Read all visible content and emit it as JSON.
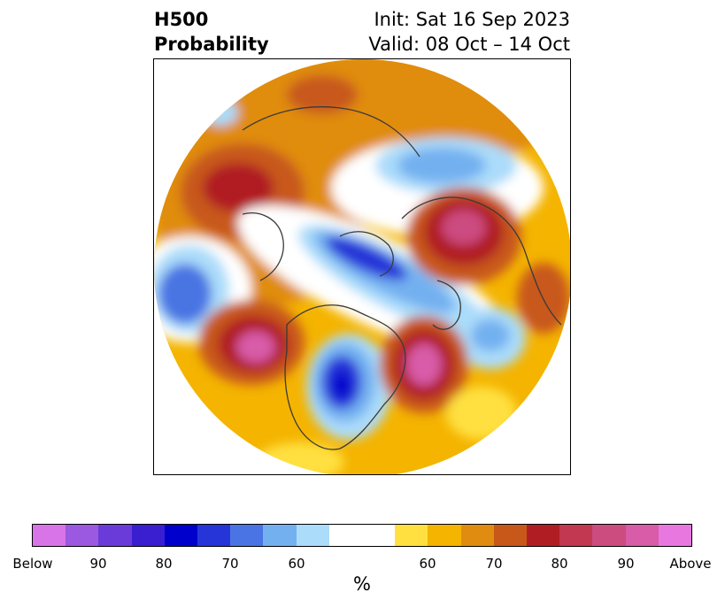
{
  "header": {
    "title_line1": "H500",
    "title_line2": "Probability",
    "init": "Init: Sat 16 Sep 2023",
    "valid": "Valid: 08 Oct – 14 Oct"
  },
  "colorbar": {
    "unit": "%",
    "colors": [
      "#d874e8",
      "#9b58e0",
      "#6b3bd9",
      "#3a1fd1",
      "#0000cc",
      "#2535d8",
      "#4a74e3",
      "#73b0f0",
      "#abdcfa",
      "#ffffff",
      "#ffffff",
      "#ffe040",
      "#f4b400",
      "#e08c10",
      "#c8581a",
      "#b01e24",
      "#c23850",
      "#cc4c80",
      "#d85ca8",
      "#e878e0"
    ],
    "tick_labels": [
      "Below",
      "90",
      "80",
      "70",
      "60",
      "60",
      "70",
      "80",
      "90",
      "Above"
    ]
  },
  "map": {
    "region": "Northern Hemisphere polar stereographic",
    "legend_note": ""
  }
}
